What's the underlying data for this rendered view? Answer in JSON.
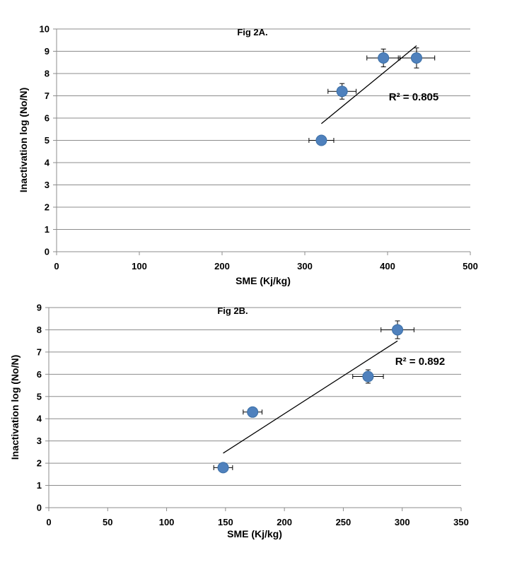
{
  "colors": {
    "marker": "#4F81BD",
    "marker_edge": "#3A6EA5",
    "grid": "#8C8C8C",
    "axis": "#8C8C8C",
    "trendline": "#000000",
    "error_bar": "#000000"
  },
  "chart_data": [
    {
      "type": "scatter",
      "title": "Fig 2A.",
      "xlabel": "SME (Kj/kg)",
      "ylabel": "Inactivation log (No/N)",
      "xlim": [
        0,
        500
      ],
      "ylim": [
        0,
        10
      ],
      "x_ticks": [
        "0",
        "100",
        "200",
        "300",
        "400",
        "500"
      ],
      "y_ticks": [
        "0",
        "1",
        "2",
        "3",
        "4",
        "5",
        "6",
        "7",
        "8",
        "9",
        "10"
      ],
      "grid": "horizontal",
      "series": [
        {
          "x": [
            320,
            345,
            395,
            435
          ],
          "y": [
            5.0,
            7.2,
            8.7,
            8.7
          ],
          "x_err": [
            15,
            17,
            20,
            22
          ],
          "y_err": [
            0.2,
            0.35,
            0.4,
            0.45
          ]
        }
      ],
      "trendline": {
        "x": [
          320,
          435
        ],
        "y": [
          5.75,
          9.25
        ]
      },
      "annotation": "R² = 0.805"
    },
    {
      "type": "scatter",
      "title": "Fig 2B.",
      "xlabel": "SME (Kj/kg)",
      "ylabel": "Inactivation log (No/N)",
      "xlim": [
        0,
        350
      ],
      "ylim": [
        0,
        9
      ],
      "x_ticks": [
        "0",
        "50",
        "100",
        "150",
        "200",
        "250",
        "300",
        "350"
      ],
      "y_ticks": [
        "0",
        "1",
        "2",
        "3",
        "4",
        "5",
        "6",
        "7",
        "8",
        "9"
      ],
      "grid": "horizontal",
      "series": [
        {
          "x": [
            148,
            173,
            271,
            296
          ],
          "y": [
            1.8,
            4.3,
            5.9,
            8.0
          ],
          "x_err": [
            8,
            8,
            13,
            14
          ],
          "y_err": [
            0.15,
            0.15,
            0.3,
            0.4
          ]
        }
      ],
      "trendline": {
        "x": [
          148,
          296
        ],
        "y": [
          2.45,
          7.5
        ]
      },
      "annotation": "R² = 0.892"
    }
  ]
}
